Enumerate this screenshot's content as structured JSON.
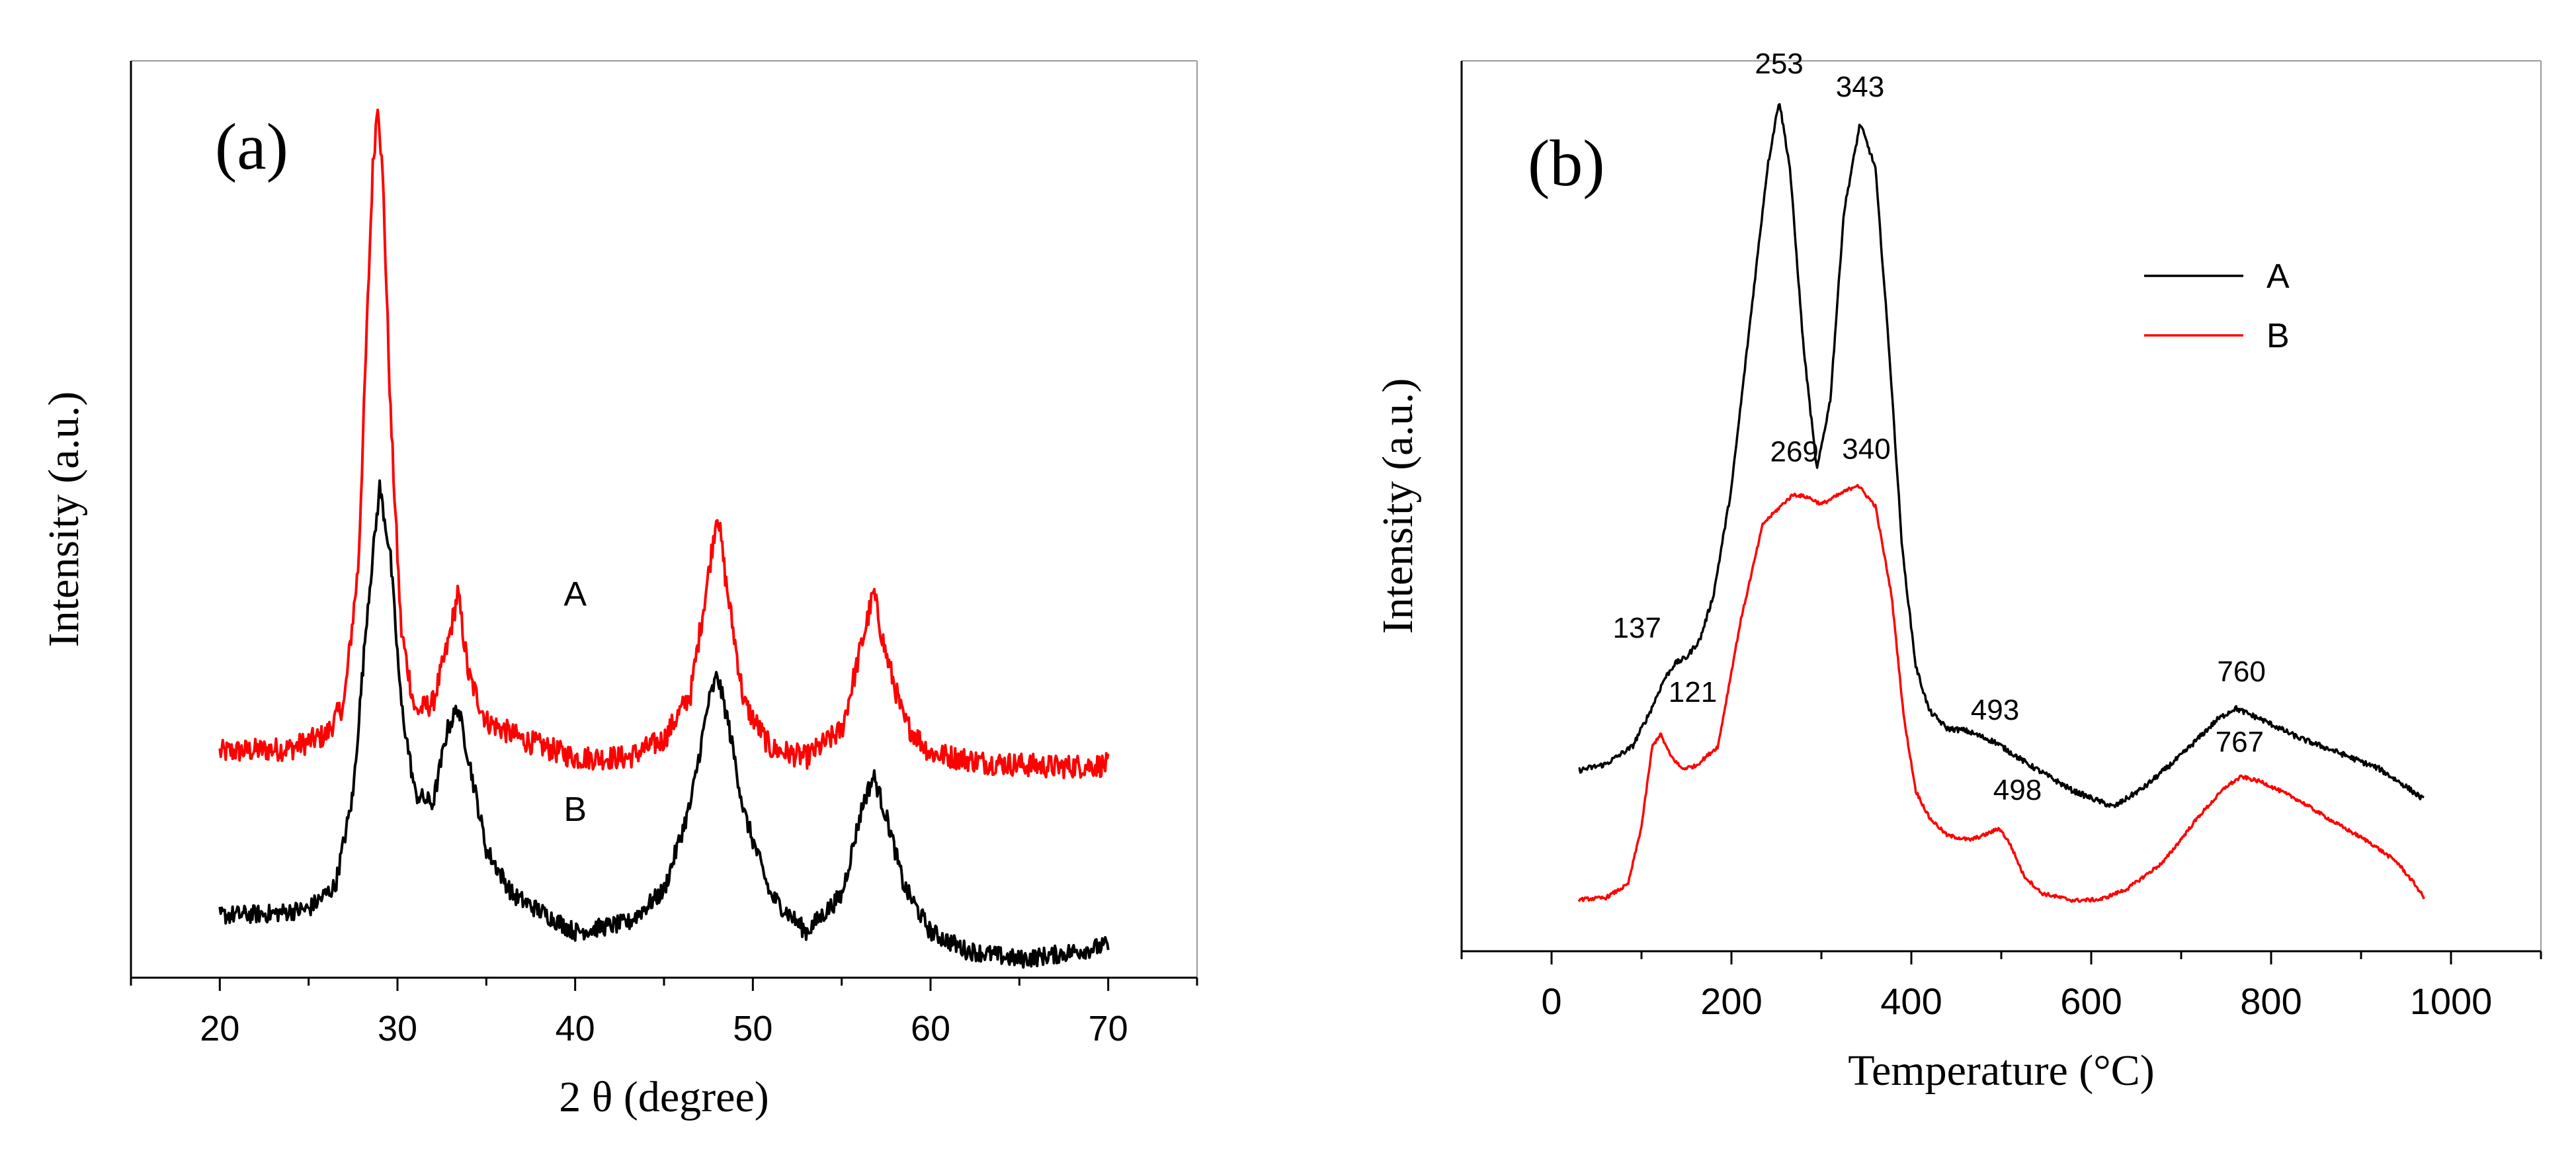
{
  "chart_data": [
    {
      "type": "line",
      "panel_label": "(a)",
      "title": "",
      "xlabel": "2 θ  (degree)",
      "ylabel": "Intensity (a.u.)",
      "xlim": [
        15,
        75
      ],
      "ylim": [
        0,
        100
      ],
      "xticks": [
        20,
        30,
        40,
        50,
        60,
        70
      ],
      "xtick_labels": [
        "20",
        "30",
        "40",
        "50",
        "60",
        "70"
      ],
      "yticks_shown": false,
      "grid": false,
      "legend": null,
      "series": [
        {
          "name": "A",
          "color": "#ff0000",
          "noise": 1.3,
          "points": [
            [
              20,
              24.6
            ],
            [
              24,
              25.0
            ],
            [
              26,
              26.5
            ],
            [
              27,
              30
            ],
            [
              27.8,
              45
            ],
            [
              28.3,
              72
            ],
            [
              28.6,
              88
            ],
            [
              28.9,
              96
            ],
            [
              29.2,
              86
            ],
            [
              29.6,
              62
            ],
            [
              30.2,
              38
            ],
            [
              31,
              29
            ],
            [
              32,
              30
            ],
            [
              32.8,
              36
            ],
            [
              33.4,
              42
            ],
            [
              34,
              33
            ],
            [
              35,
              28
            ],
            [
              37,
              26
            ],
            [
              40,
              24
            ],
            [
              43,
              24
            ],
            [
              45,
              26
            ],
            [
              46.5,
              31
            ],
            [
              47.5,
              44
            ],
            [
              48,
              51
            ],
            [
              48.5,
              43
            ],
            [
              49.5,
              30
            ],
            [
              51,
              25
            ],
            [
              53,
              24
            ],
            [
              55,
              27
            ],
            [
              56.2,
              37
            ],
            [
              56.8,
              42
            ],
            [
              57.4,
              36
            ],
            [
              58.5,
              28
            ],
            [
              60,
              24.5
            ],
            [
              63,
              23.5
            ],
            [
              67,
              23
            ],
            [
              70,
              23.2
            ]
          ],
          "label_text": "A",
          "label_at": [
            40,
            40.6
          ]
        },
        {
          "name": "B",
          "color": "#000000",
          "noise": 1.0,
          "points": [
            [
              20,
              6.8
            ],
            [
              23,
              7
            ],
            [
              25,
              7.5
            ],
            [
              26.5,
              10
            ],
            [
              27.5,
              20
            ],
            [
              28.3,
              40
            ],
            [
              29,
              53.5
            ],
            [
              29.6,
              46
            ],
            [
              30.2,
              30
            ],
            [
              31,
              20
            ],
            [
              32,
              19
            ],
            [
              32.8,
              27
            ],
            [
              33.4,
              29.5
            ],
            [
              34,
              24
            ],
            [
              35,
              14
            ],
            [
              36.5,
              9
            ],
            [
              40,
              5
            ],
            [
              43,
              6
            ],
            [
              45,
              9.5
            ],
            [
              46.5,
              19
            ],
            [
              47.5,
              30
            ],
            [
              48,
              33
            ],
            [
              48.6,
              28
            ],
            [
              49.5,
              18
            ],
            [
              51,
              9
            ],
            [
              53,
              5
            ],
            [
              55,
              9
            ],
            [
              56.2,
              19
            ],
            [
              56.8,
              22
            ],
            [
              57.6,
              17
            ],
            [
              58.5,
              10
            ],
            [
              60,
              5
            ],
            [
              62,
              3
            ],
            [
              65,
              2
            ],
            [
              67,
              2.5
            ],
            [
              70,
              3.5
            ]
          ],
          "label_text": "B",
          "label_at": [
            40,
            17.1
          ]
        }
      ]
    },
    {
      "type": "line",
      "panel_label": "(b)",
      "title": "",
      "xlabel": "Temperature (°C)",
      "ylabel": "Intensity (a.u.)",
      "xlim": [
        -100,
        1100
      ],
      "ylim": [
        0,
        100
      ],
      "xticks": [
        0,
        200,
        400,
        600,
        800,
        1000
      ],
      "xtick_labels": [
        "0",
        "200",
        "400",
        "600",
        "800",
        "1000"
      ],
      "yticks_shown": false,
      "grid": false,
      "legend": {
        "position": "top-right",
        "entries": [
          {
            "label": "A",
            "color": "#000000"
          },
          {
            "label": "B",
            "color": "#ff0000"
          }
        ]
      },
      "series": [
        {
          "name": "A",
          "color": "#000000",
          "noise": 0.3,
          "points": [
            [
              30,
              20.3
            ],
            [
              60,
              21
            ],
            [
              90,
              23
            ],
            [
              110,
              27
            ],
            [
              125,
              30.5
            ],
            [
              137,
              32.3
            ],
            [
              150,
              33
            ],
            [
              165,
              35
            ],
            [
              180,
              40
            ],
            [
              200,
              52
            ],
            [
              220,
              70
            ],
            [
              240,
              88
            ],
            [
              253,
              95.6
            ],
            [
              265,
              88
            ],
            [
              280,
              68
            ],
            [
              295,
              54
            ],
            [
              310,
              62
            ],
            [
              325,
              83
            ],
            [
              343,
              93
            ],
            [
              360,
              88
            ],
            [
              375,
              68
            ],
            [
              390,
              45
            ],
            [
              405,
              32
            ],
            [
              420,
              27
            ],
            [
              440,
              25
            ],
            [
              460,
              24.8
            ],
            [
              493,
              23.5
            ],
            [
              530,
              21
            ],
            [
              580,
              18
            ],
            [
              625,
              16.2
            ],
            [
              660,
              18.5
            ],
            [
              700,
              22
            ],
            [
              740,
              26
            ],
            [
              760,
              27.3
            ],
            [
              790,
              26
            ],
            [
              830,
              24
            ],
            [
              870,
              22.5
            ],
            [
              920,
              20.5
            ],
            [
              950,
              18.5
            ],
            [
              970,
              17
            ]
          ]
        },
        {
          "name": "B",
          "color": "#ff0000",
          "noise": 0.2,
          "points": [
            [
              30,
              5.8
            ],
            [
              60,
              6
            ],
            [
              85,
              7.5
            ],
            [
              100,
              14
            ],
            [
              112,
              23
            ],
            [
              121,
              24.4
            ],
            [
              132,
              22
            ],
            [
              145,
              20.5
            ],
            [
              160,
              20.8
            ],
            [
              185,
              23
            ],
            [
              210,
              37
            ],
            [
              235,
              48
            ],
            [
              260,
              50.5
            ],
            [
              269,
              51.3
            ],
            [
              285,
              51
            ],
            [
              300,
              50.2
            ],
            [
              320,
              51.3
            ],
            [
              340,
              52.4
            ],
            [
              360,
              50
            ],
            [
              378,
              40
            ],
            [
              392,
              26
            ],
            [
              405,
              18
            ],
            [
              420,
              15
            ],
            [
              440,
              13
            ],
            [
              465,
              12.5
            ],
            [
              480,
              13
            ],
            [
              498,
              13.8
            ],
            [
              510,
              12
            ],
            [
              525,
              8.5
            ],
            [
              545,
              6.5
            ],
            [
              580,
              5.7
            ],
            [
              610,
              5.8
            ],
            [
              640,
              7
            ],
            [
              680,
              10
            ],
            [
              720,
              15.2
            ],
            [
              750,
              18.5
            ],
            [
              767,
              19.6
            ],
            [
              790,
              19
            ],
            [
              830,
              17
            ],
            [
              870,
              14.5
            ],
            [
              910,
              12.2
            ],
            [
              940,
              10
            ],
            [
              960,
              7.5
            ],
            [
              970,
              6
            ]
          ]
        }
      ],
      "annotations": [
        {
          "text": "253",
          "at": [
            253,
            98.6
          ]
        },
        {
          "text": "343",
          "at": [
            343,
            96.0
          ]
        },
        {
          "text": "137",
          "at": [
            95,
            35.2
          ]
        },
        {
          "text": "121",
          "at": [
            157,
            28.0
          ]
        },
        {
          "text": "269",
          "at": [
            270,
            55.0
          ]
        },
        {
          "text": "340",
          "at": [
            350,
            55.3
          ]
        },
        {
          "text": "493",
          "at": [
            493,
            26.0
          ]
        },
        {
          "text": "760",
          "at": [
            767,
            30.3
          ]
        },
        {
          "text": "498",
          "at": [
            518,
            17.0
          ]
        },
        {
          "text": "767",
          "at": [
            765,
            22.4
          ]
        }
      ]
    }
  ]
}
